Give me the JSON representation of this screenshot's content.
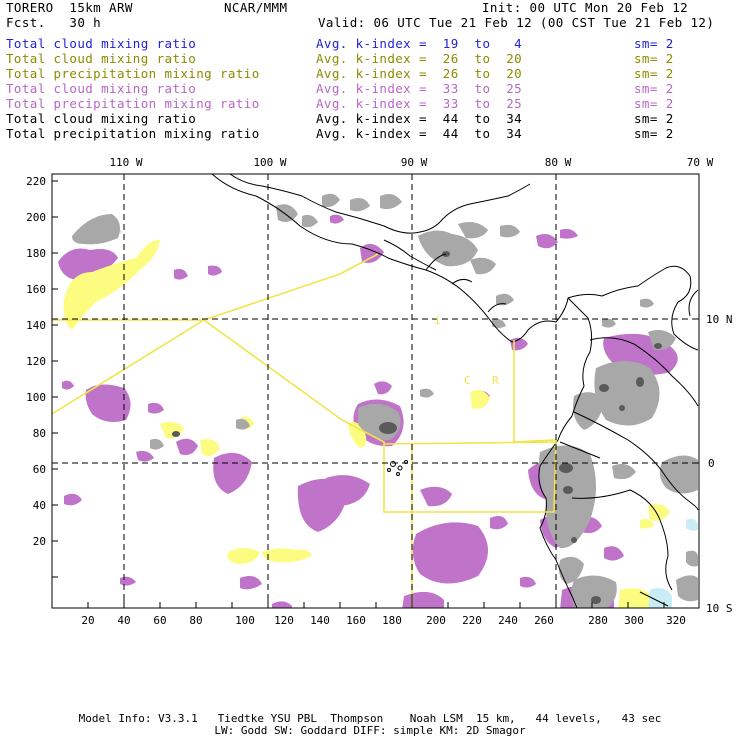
{
  "header": {
    "model": "TORERO  15km ARW",
    "org": "NCAR/MMM",
    "init": "Init: 00 UTC Mon 20 Feb 12",
    "fcst": "Fcst.   30 h",
    "valid": "Valid: 06 UTC Tue 21 Feb 12 (00 CST Tue 21 Feb 12)"
  },
  "legend": [
    {
      "field": "Total cloud mixing ratio",
      "index": "Avg. k-index =  19  to   4",
      "sm": "sm= 2",
      "color": "#1f1fd6"
    },
    {
      "field": "Total cloud mixing ratio",
      "index": "Avg. k-index =  26  to  20",
      "sm": "sm= 2",
      "color": "#8c8c00"
    },
    {
      "field": "Total precipitation mixing ratio",
      "index": "Avg. k-index =  26  to  20",
      "sm": "sm= 2",
      "color": "#8c8c00"
    },
    {
      "field": "Total cloud mixing ratio",
      "index": "Avg. k-index =  33  to  25",
      "sm": "sm= 2",
      "color": "#b767c7"
    },
    {
      "field": "Total precipitation mixing ratio",
      "index": "Avg. k-index =  33  to  25",
      "sm": "sm= 2",
      "color": "#b767c7"
    },
    {
      "field": "Total cloud mixing ratio",
      "index": "Avg. k-index =  44  to  34",
      "sm": "sm= 2",
      "color": "#000000"
    },
    {
      "field": "Total precipitation mixing ratio",
      "index": "Avg. k-index =  44  to  34",
      "sm": "sm= 2",
      "color": "#000000"
    }
  ],
  "map": {
    "lon_labels": [
      "110 W",
      "100 W",
      "90 W",
      "80 W",
      "70 W"
    ],
    "lat_labels": [
      "10 N",
      "0",
      "10 S"
    ],
    "x_ticks": [
      "20",
      "40",
      "60",
      "80",
      "100",
      "120",
      "140",
      "160",
      "180",
      "200",
      "220",
      "240",
      "260",
      "280",
      "300",
      "320"
    ],
    "y_ticks": [
      "220",
      "200",
      "180",
      "160",
      "140",
      "120",
      "100",
      "80",
      "60",
      "40",
      "20"
    ],
    "annotations": {
      "i_mark": "i",
      "c_mark": "C",
      "r_mark": "R"
    },
    "colors": {
      "cloud_gray": "#a8a8a8",
      "cloud_dark": "#5a5a5a",
      "precip_purple": "#bf73c9",
      "light_yellow": "#fcfc80",
      "line_yellow": "#f2e44a",
      "light_blue": "#c9ecf5"
    }
  },
  "footer": {
    "line1": "Model Info: V3.3.1   Tiedtke YSU PBL  Thompson    Noah LSM  15 km,   44 levels,   43 sec",
    "line2": "LW: Godd SW: Goddard DIFF: simple KM: 2D Smagor"
  }
}
